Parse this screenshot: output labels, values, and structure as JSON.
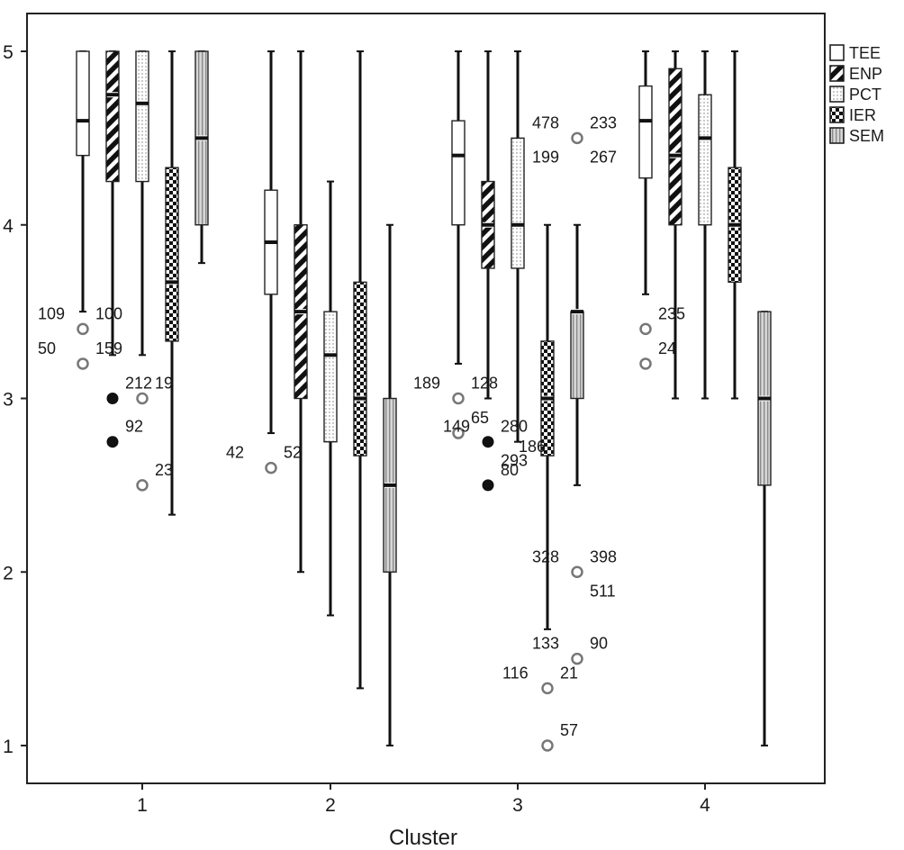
{
  "chart_data": {
    "type": "boxplot",
    "title": "",
    "xlabel": "Cluster",
    "ylabel": "",
    "ylim": [
      0.8,
      5.1
    ],
    "yticks": [
      1,
      2,
      3,
      4,
      5
    ],
    "categories": [
      "1",
      "2",
      "3",
      "4"
    ],
    "legend": {
      "position": "top-right"
    },
    "series": [
      {
        "name": "TEE",
        "pattern": "plain",
        "boxes": [
          {
            "min": 3.5,
            "q1": 4.4,
            "median": 4.6,
            "q3": 5.0,
            "max": 5.0
          },
          {
            "min": 2.8,
            "q1": 3.6,
            "median": 3.9,
            "q3": 4.2,
            "max": 5.0
          },
          {
            "min": 3.2,
            "q1": 4.0,
            "median": 4.4,
            "q3": 4.6,
            "max": 5.0
          },
          {
            "min": 3.6,
            "q1": 4.27,
            "median": 4.6,
            "q3": 4.8,
            "max": 5.0
          }
        ]
      },
      {
        "name": "ENP",
        "pattern": "diagonal",
        "boxes": [
          {
            "min": 3.25,
            "q1": 4.25,
            "median": 4.75,
            "q3": 5.0,
            "max": 5.0
          },
          {
            "min": 2.0,
            "q1": 3.0,
            "median": 3.5,
            "q3": 4.0,
            "max": 5.0
          },
          {
            "min": 3.0,
            "q1": 3.75,
            "median": 4.0,
            "q3": 4.25,
            "max": 5.0
          },
          {
            "min": 3.0,
            "q1": 4.0,
            "median": 4.4,
            "q3": 4.9,
            "max": 5.0
          }
        ]
      },
      {
        "name": "PCT",
        "pattern": "dotted",
        "boxes": [
          {
            "min": 3.25,
            "q1": 4.25,
            "median": 4.7,
            "q3": 5.0,
            "max": 5.0
          },
          {
            "min": 1.75,
            "q1": 2.75,
            "median": 3.25,
            "q3": 3.5,
            "max": 4.25
          },
          {
            "min": 2.75,
            "q1": 3.75,
            "median": 4.0,
            "q3": 4.5,
            "max": 5.0
          },
          {
            "min": 3.0,
            "q1": 4.0,
            "median": 4.5,
            "q3": 4.75,
            "max": 5.0
          }
        ]
      },
      {
        "name": "IER",
        "pattern": "checker",
        "boxes": [
          {
            "min": 2.33,
            "q1": 3.33,
            "median": 3.67,
            "q3": 4.33,
            "max": 5.0
          },
          {
            "min": 1.33,
            "q1": 2.67,
            "median": 3.0,
            "q3": 3.67,
            "max": 5.0
          },
          {
            "min": 1.67,
            "q1": 2.67,
            "median": 3.0,
            "q3": 3.33,
            "max": 4.0
          },
          {
            "min": 3.0,
            "q1": 3.67,
            "median": 4.0,
            "q3": 4.33,
            "max": 5.0
          }
        ]
      },
      {
        "name": "SEM",
        "pattern": "vertical",
        "boxes": [
          {
            "min": 3.78,
            "q1": 4.0,
            "median": 4.5,
            "q3": 5.0,
            "max": 5.0
          },
          {
            "min": 1.0,
            "q1": 2.0,
            "median": 2.5,
            "q3": 3.0,
            "max": 4.0
          },
          {
            "min": 2.5,
            "q1": 3.0,
            "median": 3.5,
            "q3": 3.5,
            "max": 4.0
          },
          {
            "min": 1.0,
            "q1": 2.5,
            "median": 3.0,
            "q3": 3.5,
            "max": 3.5
          }
        ]
      }
    ],
    "outliers": [
      {
        "cluster": "1",
        "series": "TEE",
        "value": 3.4,
        "kind": "mild",
        "labels": [
          "100",
          "109"
        ]
      },
      {
        "cluster": "1",
        "series": "TEE",
        "value": 3.2,
        "kind": "mild",
        "labels": [
          "159",
          "50"
        ]
      },
      {
        "cluster": "1",
        "series": "ENP",
        "value": 3.0,
        "kind": "extreme",
        "labels": [
          "212"
        ]
      },
      {
        "cluster": "1",
        "series": "ENP",
        "value": 2.75,
        "kind": "extreme",
        "labels": [
          "92"
        ]
      },
      {
        "cluster": "1",
        "series": "PCT",
        "value": 3.0,
        "kind": "mild",
        "labels": [
          "19"
        ]
      },
      {
        "cluster": "1",
        "series": "PCT",
        "value": 2.5,
        "kind": "mild",
        "labels": [
          "23"
        ]
      },
      {
        "cluster": "2",
        "series": "TEE",
        "value": 2.6,
        "kind": "mild",
        "labels": [
          "52",
          "42"
        ]
      },
      {
        "cluster": "3",
        "series": "TEE",
        "value": 3.0,
        "kind": "mild",
        "labels": [
          "128",
          "189"
        ]
      },
      {
        "cluster": "3",
        "series": "TEE",
        "value": 2.8,
        "kind": "mild",
        "labels": [
          "65"
        ]
      },
      {
        "cluster": "3",
        "series": "ENP",
        "value": 2.75,
        "kind": "extreme",
        "labels": [
          "280",
          "149",
          "293"
        ]
      },
      {
        "cluster": "3",
        "series": "ENP",
        "value": 2.5,
        "kind": "extreme",
        "labels": [
          "80"
        ]
      },
      {
        "cluster": "3",
        "series": "IER",
        "value": 1.33,
        "kind": "mild",
        "labels": [
          "21",
          "116"
        ]
      },
      {
        "cluster": "3",
        "series": "IER",
        "value": 1.0,
        "kind": "mild",
        "labels": [
          "57"
        ]
      },
      {
        "cluster": "3",
        "series": "SEM",
        "value": 4.5,
        "kind": "mild",
        "labels": [
          "233",
          "478",
          "267",
          "199"
        ]
      },
      {
        "cluster": "3",
        "series": "SEM",
        "value": 2.0,
        "kind": "mild",
        "labels": [
          "398",
          "328",
          "511"
        ]
      },
      {
        "cluster": "3",
        "series": "SEM",
        "value": 1.5,
        "kind": "mild",
        "labels": [
          "90",
          "133"
        ]
      },
      {
        "cluster": "4",
        "series": "TEE",
        "value": 3.4,
        "kind": "mild",
        "labels": [
          "235"
        ]
      },
      {
        "cluster": "4",
        "series": "TEE",
        "value": 3.2,
        "kind": "mild",
        "labels": [
          "24"
        ]
      }
    ],
    "annotations": [
      "186"
    ]
  }
}
